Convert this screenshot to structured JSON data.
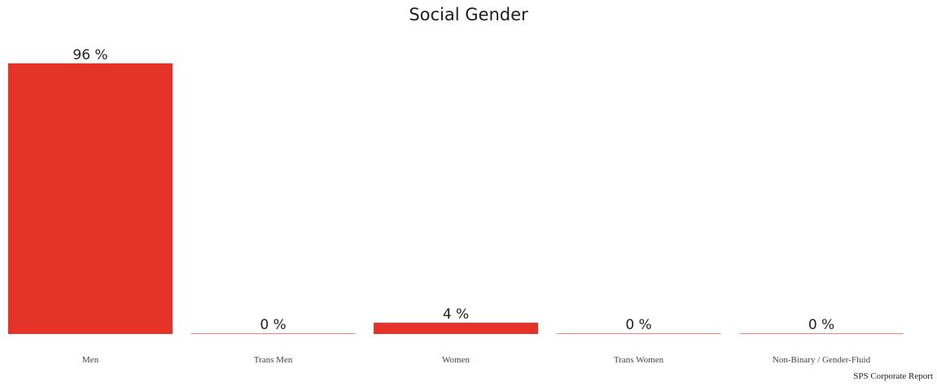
{
  "chart_data": {
    "type": "bar",
    "title": "Social Gender",
    "categories": [
      "Men",
      "Trans Men",
      "Women",
      "Trans Women",
      "Non-Binary / Gender-Fluid"
    ],
    "values": [
      96,
      0,
      4,
      0,
      0
    ],
    "value_labels": [
      "96 %",
      "0 %",
      "4 %",
      "0 %",
      "0 %"
    ],
    "ylim": [
      0,
      96
    ],
    "grid": false,
    "legend": "none",
    "bar_color": "#e5332a",
    "zero_line_color": "#e5332a"
  },
  "source_note": "SPS Corporate Report"
}
